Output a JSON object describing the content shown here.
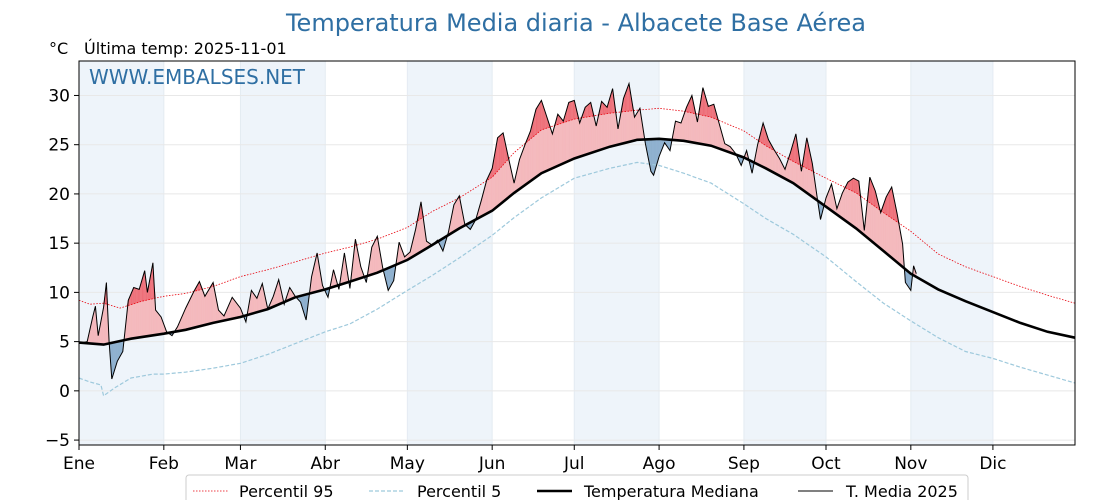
{
  "colors": {
    "title": "#2f6fa3",
    "p95": "#e8000b",
    "p5": "#9ec9dc",
    "median": "#000000",
    "current": "#000000",
    "above_fill": "#f4b9bd",
    "above_strong": "#ee6f78",
    "below_fill": "#8fb1cf",
    "band": "#eef4fa"
  },
  "chart_data": {
    "type": "line",
    "title": "Temperatura Media diaria - Albacete Base Aérea",
    "ylabel": "°C",
    "subtitle": "Última temp: 2025-11-01",
    "watermark": "WWW.EMBALSES.NET",
    "xlim": [
      1,
      365
    ],
    "ylim": [
      -5.5,
      33.5
    ],
    "yticks": [
      -5,
      0,
      5,
      10,
      15,
      20,
      25,
      30
    ],
    "ytick_labels": [
      "−5",
      "0",
      "5",
      "10",
      "15",
      "20",
      "25",
      "30"
    ],
    "months": [
      "Ene",
      "Feb",
      "Mar",
      "Abr",
      "May",
      "Jun",
      "Jul",
      "Ago",
      "Sep",
      "Oct",
      "Nov",
      "Dic"
    ],
    "month_start_days": [
      1,
      32,
      60,
      91,
      121,
      152,
      182,
      213,
      244,
      274,
      305,
      335
    ],
    "legend_position": "bottom-center",
    "series": [
      {
        "name": "Percentil 95",
        "style": "dotted-red",
        "points": [
          [
            1,
            9.2
          ],
          [
            5,
            8.8
          ],
          [
            10,
            8.9
          ],
          [
            16,
            8.4
          ],
          [
            24,
            9.1
          ],
          [
            32,
            9.6
          ],
          [
            40,
            9.9
          ],
          [
            50,
            10.6
          ],
          [
            60,
            11.6
          ],
          [
            70,
            12.3
          ],
          [
            80,
            13.1
          ],
          [
            91,
            14.0
          ],
          [
            100,
            14.6
          ],
          [
            110,
            15.4
          ],
          [
            121,
            16.6
          ],
          [
            130,
            18.2
          ],
          [
            140,
            19.6
          ],
          [
            152,
            21.7
          ],
          [
            160,
            24.2
          ],
          [
            170,
            26.5
          ],
          [
            182,
            27.6
          ],
          [
            195,
            28.2
          ],
          [
            205,
            28.5
          ],
          [
            213,
            28.7
          ],
          [
            222,
            28.4
          ],
          [
            232,
            27.8
          ],
          [
            244,
            26.4
          ],
          [
            252,
            24.9
          ],
          [
            262,
            23.3
          ],
          [
            274,
            21.6
          ],
          [
            285,
            20.1
          ],
          [
            295,
            18.1
          ],
          [
            305,
            16.2
          ],
          [
            315,
            13.9
          ],
          [
            325,
            12.6
          ],
          [
            335,
            11.6
          ],
          [
            345,
            10.6
          ],
          [
            355,
            9.7
          ],
          [
            365,
            8.9
          ]
        ]
      },
      {
        "name": "Percentil 5",
        "style": "dashed-lightblue",
        "points": [
          [
            1,
            1.3
          ],
          [
            5,
            0.9
          ],
          [
            9,
            0.6
          ],
          [
            10,
            -0.5
          ],
          [
            14,
            0.3
          ],
          [
            20,
            1.3
          ],
          [
            28,
            1.7
          ],
          [
            32,
            1.7
          ],
          [
            40,
            1.9
          ],
          [
            50,
            2.3
          ],
          [
            60,
            2.8
          ],
          [
            70,
            3.7
          ],
          [
            80,
            4.8
          ],
          [
            91,
            6.0
          ],
          [
            100,
            6.8
          ],
          [
            110,
            8.3
          ],
          [
            121,
            10.2
          ],
          [
            130,
            11.7
          ],
          [
            140,
            13.5
          ],
          [
            152,
            15.8
          ],
          [
            160,
            17.6
          ],
          [
            170,
            19.6
          ],
          [
            182,
            21.6
          ],
          [
            195,
            22.6
          ],
          [
            205,
            23.2
          ],
          [
            213,
            22.9
          ],
          [
            222,
            22.1
          ],
          [
            232,
            21.1
          ],
          [
            244,
            19.0
          ],
          [
            252,
            17.5
          ],
          [
            262,
            15.9
          ],
          [
            274,
            13.6
          ],
          [
            285,
            11.1
          ],
          [
            295,
            8.9
          ],
          [
            305,
            7.1
          ],
          [
            315,
            5.4
          ],
          [
            325,
            4.0
          ],
          [
            335,
            3.3
          ],
          [
            345,
            2.4
          ],
          [
            355,
            1.6
          ],
          [
            365,
            0.8
          ]
        ]
      },
      {
        "name": "Temperatura Mediana",
        "style": "thick-black",
        "points": [
          [
            1,
            4.9
          ],
          [
            10,
            4.7
          ],
          [
            20,
            5.3
          ],
          [
            32,
            5.8
          ],
          [
            40,
            6.2
          ],
          [
            50,
            6.9
          ],
          [
            60,
            7.5
          ],
          [
            70,
            8.3
          ],
          [
            80,
            9.5
          ],
          [
            91,
            10.3
          ],
          [
            100,
            11.1
          ],
          [
            110,
            12.0
          ],
          [
            121,
            13.3
          ],
          [
            130,
            14.8
          ],
          [
            140,
            16.5
          ],
          [
            152,
            18.3
          ],
          [
            160,
            20.1
          ],
          [
            170,
            22.1
          ],
          [
            182,
            23.6
          ],
          [
            195,
            24.8
          ],
          [
            205,
            25.5
          ],
          [
            213,
            25.6
          ],
          [
            222,
            25.4
          ],
          [
            232,
            24.9
          ],
          [
            244,
            23.7
          ],
          [
            252,
            22.6
          ],
          [
            262,
            21.1
          ],
          [
            274,
            18.7
          ],
          [
            285,
            16.5
          ],
          [
            295,
            14.2
          ],
          [
            305,
            11.9
          ],
          [
            315,
            10.3
          ],
          [
            325,
            9.1
          ],
          [
            335,
            8.0
          ],
          [
            345,
            6.9
          ],
          [
            355,
            6.0
          ],
          [
            365,
            5.4
          ]
        ]
      },
      {
        "name": "T. Media 2025",
        "style": "thin-black",
        "points": [
          [
            1,
            4.8
          ],
          [
            4,
            5.0
          ],
          [
            6,
            7.5
          ],
          [
            7,
            8.6
          ],
          [
            8,
            5.6
          ],
          [
            10,
            8.5
          ],
          [
            11,
            11.0
          ],
          [
            12,
            5.0
          ],
          [
            13,
            1.2
          ],
          [
            15,
            3.0
          ],
          [
            17,
            4.0
          ],
          [
            19,
            9.2
          ],
          [
            21,
            10.5
          ],
          [
            23,
            10.3
          ],
          [
            25,
            12.2
          ],
          [
            26,
            10.0
          ],
          [
            28,
            13.0
          ],
          [
            29,
            8.2
          ],
          [
            31,
            7.5
          ],
          [
            33,
            6.0
          ],
          [
            35,
            5.6
          ],
          [
            37,
            6.5
          ],
          [
            40,
            8.4
          ],
          [
            43,
            10.1
          ],
          [
            45,
            11.1
          ],
          [
            47,
            9.6
          ],
          [
            50,
            11.0
          ],
          [
            52,
            8.2
          ],
          [
            54,
            7.6
          ],
          [
            57,
            9.5
          ],
          [
            60,
            8.4
          ],
          [
            62,
            7.0
          ],
          [
            64,
            10.2
          ],
          [
            66,
            9.4
          ],
          [
            68,
            10.9
          ],
          [
            70,
            8.3
          ],
          [
            72,
            9.6
          ],
          [
            74,
            11.3
          ],
          [
            76,
            8.8
          ],
          [
            78,
            10.5
          ],
          [
            80,
            9.6
          ],
          [
            82,
            9.0
          ],
          [
            84,
            7.2
          ],
          [
            86,
            11.6
          ],
          [
            88,
            14.0
          ],
          [
            90,
            10.7
          ],
          [
            92,
            9.5
          ],
          [
            94,
            12.3
          ],
          [
            96,
            10.3
          ],
          [
            98,
            14.0
          ],
          [
            100,
            10.4
          ],
          [
            102,
            15.4
          ],
          [
            104,
            12.6
          ],
          [
            106,
            11.0
          ],
          [
            108,
            14.6
          ],
          [
            110,
            15.7
          ],
          [
            112,
            12.5
          ],
          [
            114,
            10.2
          ],
          [
            116,
            11.2
          ],
          [
            118,
            15.1
          ],
          [
            120,
            13.6
          ],
          [
            122,
            14.1
          ],
          [
            124,
            16.4
          ],
          [
            126,
            19.2
          ],
          [
            128,
            15.2
          ],
          [
            130,
            14.8
          ],
          [
            132,
            15.3
          ],
          [
            134,
            14.2
          ],
          [
            136,
            16.1
          ],
          [
            138,
            18.9
          ],
          [
            140,
            19.8
          ],
          [
            142,
            16.9
          ],
          [
            144,
            16.4
          ],
          [
            146,
            17.4
          ],
          [
            148,
            19.3
          ],
          [
            150,
            21.4
          ],
          [
            152,
            22.6
          ],
          [
            154,
            25.7
          ],
          [
            156,
            26.2
          ],
          [
            158,
            23.6
          ],
          [
            160,
            21.1
          ],
          [
            162,
            23.5
          ],
          [
            164,
            25.0
          ],
          [
            166,
            26.4
          ],
          [
            168,
            28.6
          ],
          [
            170,
            29.5
          ],
          [
            172,
            27.8
          ],
          [
            174,
            26.1
          ],
          [
            176,
            28.1
          ],
          [
            178,
            27.4
          ],
          [
            180,
            29.3
          ],
          [
            182,
            29.5
          ],
          [
            184,
            27.2
          ],
          [
            186,
            28.8
          ],
          [
            188,
            29.3
          ],
          [
            190,
            26.9
          ],
          [
            192,
            29.4
          ],
          [
            194,
            28.8
          ],
          [
            196,
            30.7
          ],
          [
            198,
            26.6
          ],
          [
            200,
            29.7
          ],
          [
            202,
            31.2
          ],
          [
            204,
            27.8
          ],
          [
            206,
            28.7
          ],
          [
            208,
            25.1
          ],
          [
            210,
            22.3
          ],
          [
            211,
            21.9
          ],
          [
            213,
            23.8
          ],
          [
            215,
            25.2
          ],
          [
            217,
            24.4
          ],
          [
            219,
            27.4
          ],
          [
            221,
            27.2
          ],
          [
            223,
            28.8
          ],
          [
            225,
            30.0
          ],
          [
            227,
            27.3
          ],
          [
            229,
            30.8
          ],
          [
            231,
            28.9
          ],
          [
            233,
            29.1
          ],
          [
            235,
            27.1
          ],
          [
            237,
            25.1
          ],
          [
            239,
            24.8
          ],
          [
            241,
            24.1
          ],
          [
            243,
            22.9
          ],
          [
            245,
            24.4
          ],
          [
            247,
            22.1
          ],
          [
            249,
            25.0
          ],
          [
            251,
            27.2
          ],
          [
            253,
            25.5
          ],
          [
            255,
            24.5
          ],
          [
            257,
            23.6
          ],
          [
            259,
            22.5
          ],
          [
            261,
            24.2
          ],
          [
            263,
            26.1
          ],
          [
            265,
            22.3
          ],
          [
            267,
            25.7
          ],
          [
            269,
            23.1
          ],
          [
            271,
            19.2
          ],
          [
            272,
            17.4
          ],
          [
            274,
            19.6
          ],
          [
            276,
            21.0
          ],
          [
            278,
            18.5
          ],
          [
            280,
            20.1
          ],
          [
            282,
            21.2
          ],
          [
            284,
            21.6
          ],
          [
            286,
            21.3
          ],
          [
            288,
            16.3
          ],
          [
            290,
            21.7
          ],
          [
            292,
            20.3
          ],
          [
            294,
            18.1
          ],
          [
            296,
            19.7
          ],
          [
            298,
            20.7
          ],
          [
            300,
            18.0
          ],
          [
            302,
            14.9
          ],
          [
            303,
            11.0
          ],
          [
            305,
            10.2
          ],
          [
            306,
            12.7
          ],
          [
            307,
            11.9
          ]
        ]
      }
    ]
  },
  "legend": [
    {
      "label": "Percentil 95",
      "kind": "p95"
    },
    {
      "label": "Percentil 5",
      "kind": "p5"
    },
    {
      "label": "Temperatura Mediana",
      "kind": "median"
    },
    {
      "label": "T. Media 2025",
      "kind": "current"
    }
  ]
}
